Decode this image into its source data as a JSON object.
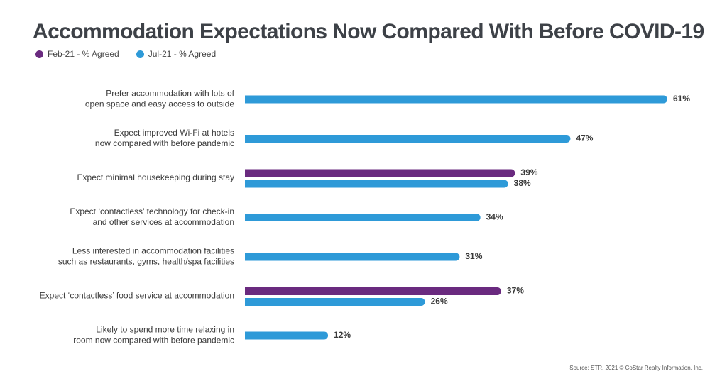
{
  "title": "Accommodation Expectations Now Compared With Before COVID-19",
  "source": "Source: STR. 2021 © CoStar Realty Information, Inc.",
  "colors": {
    "feb": "#6a2a7f",
    "jul": "#2e9ad8"
  },
  "chart_data": {
    "type": "bar",
    "orientation": "horizontal",
    "title": "Accommodation Expectations Now Compared With Before COVID-19",
    "legend_position": "top-left",
    "categories": [
      [
        "Prefer accommodation with lots of",
        "open space and easy access to outside"
      ],
      [
        "Expect improved Wi-Fi at hotels",
        "now compared with before pandemic"
      ],
      [
        "Expect minimal housekeeping during stay"
      ],
      [
        "Expect ‘contactless’ technology for check-in",
        "and other services at accommodation"
      ],
      [
        "Less interested in accommodation facilities",
        "such as restaurants, gyms, health/spa facilities"
      ],
      [
        "Expect ‘contactless’ food service at accommodation"
      ],
      [
        "Likely to spend more time relaxing in",
        "room now compared with before pandemic"
      ]
    ],
    "series": [
      {
        "name": "Feb-21 - % Agreed",
        "values": [
          null,
          null,
          39,
          null,
          null,
          37,
          null
        ],
        "color": "#6a2a7f"
      },
      {
        "name": "Jul-21 - % Agreed",
        "values": [
          61,
          47,
          38,
          34,
          31,
          26,
          12
        ],
        "color": "#2e9ad8"
      }
    ],
    "value_suffix": "%",
    "xlim": [
      0,
      61
    ]
  }
}
